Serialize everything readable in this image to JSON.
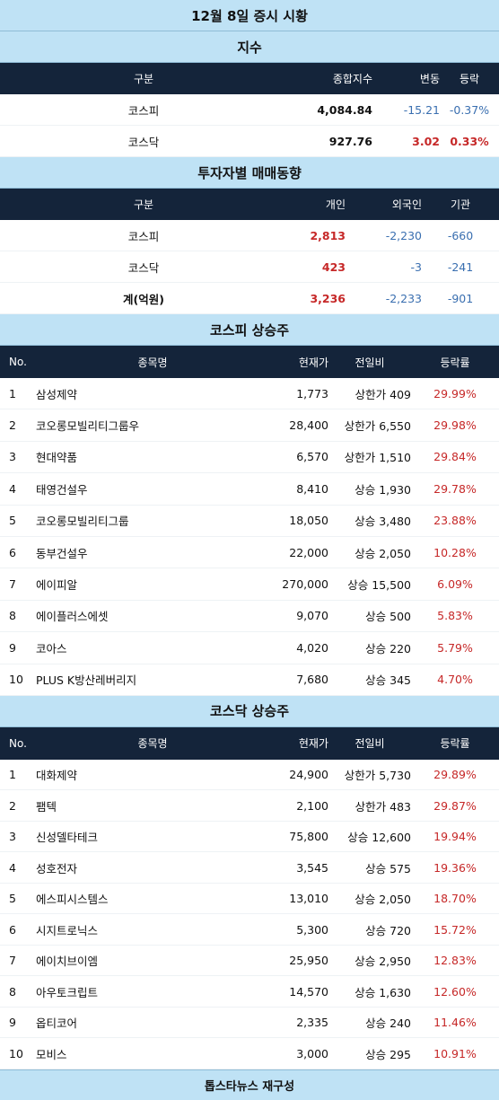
{
  "title": "12월 8일 증시 시황",
  "index_section": {
    "heading": "지수",
    "headers": [
      "구분",
      "종합지수",
      "변동",
      "등락"
    ],
    "rows": [
      {
        "name": "코스피",
        "value": "4,084.84",
        "change": "-15.21",
        "pct": "-0.37%",
        "dir": "down"
      },
      {
        "name": "코스닥",
        "value": "927.76",
        "change": "3.02",
        "pct": "0.33%",
        "dir": "up"
      }
    ]
  },
  "investor_section": {
    "heading": "투자자별 매매동향",
    "headers": [
      "구분",
      "개인",
      "외국인",
      "기관"
    ],
    "rows": [
      {
        "name": "코스피",
        "individual": "2,813",
        "foreign": "-2,230",
        "institution": "-660"
      },
      {
        "name": "코스닥",
        "individual": "423",
        "foreign": "-3",
        "institution": "-241"
      },
      {
        "name": "계(억원)",
        "individual": "3,236",
        "foreign": "-2,233",
        "institution": "-901"
      }
    ]
  },
  "kospi_gainers": {
    "heading": "코스피 상승주",
    "headers": [
      "No.",
      "종목명",
      "현재가",
      "전일비",
      "등락률"
    ],
    "rows": [
      {
        "no": "1",
        "name": "삼성제약",
        "price": "1,773",
        "diff": "상한가 409",
        "pct": "29.99%"
      },
      {
        "no": "2",
        "name": "코오롱모빌리티그룹우",
        "price": "28,400",
        "diff": "상한가 6,550",
        "pct": "29.98%"
      },
      {
        "no": "3",
        "name": "현대약품",
        "price": "6,570",
        "diff": "상한가 1,510",
        "pct": "29.84%"
      },
      {
        "no": "4",
        "name": "태영건설우",
        "price": "8,410",
        "diff": "상승 1,930",
        "pct": "29.78%"
      },
      {
        "no": "5",
        "name": "코오롱모빌리티그룹",
        "price": "18,050",
        "diff": "상승 3,480",
        "pct": "23.88%"
      },
      {
        "no": "6",
        "name": "동부건설우",
        "price": "22,000",
        "diff": "상승 2,050",
        "pct": "10.28%"
      },
      {
        "no": "7",
        "name": "에이피알",
        "price": "270,000",
        "diff": "상승 15,500",
        "pct": "6.09%"
      },
      {
        "no": "8",
        "name": "에이플러스에셋",
        "price": "9,070",
        "diff": "상승 500",
        "pct": "5.83%"
      },
      {
        "no": "9",
        "name": "코아스",
        "price": "4,020",
        "diff": "상승 220",
        "pct": "5.79%"
      },
      {
        "no": "10",
        "name": "PLUS K방산레버리지",
        "price": "7,680",
        "diff": "상승 345",
        "pct": "4.70%"
      }
    ]
  },
  "kosdaq_gainers": {
    "heading": "코스닥 상승주",
    "headers": [
      "No.",
      "종목명",
      "현재가",
      "전일비",
      "등락률"
    ],
    "rows": [
      {
        "no": "1",
        "name": "대화제약",
        "price": "24,900",
        "diff": "상한가 5,730",
        "pct": "29.89%"
      },
      {
        "no": "2",
        "name": "팸텍",
        "price": "2,100",
        "diff": "상한가 483",
        "pct": "29.87%"
      },
      {
        "no": "3",
        "name": "신성델타테크",
        "price": "75,800",
        "diff": "상승 12,600",
        "pct": "19.94%"
      },
      {
        "no": "4",
        "name": "성호전자",
        "price": "3,545",
        "diff": "상승 575",
        "pct": "19.36%"
      },
      {
        "no": "5",
        "name": "에스피시스템스",
        "price": "13,010",
        "diff": "상승 2,050",
        "pct": "18.70%"
      },
      {
        "no": "6",
        "name": "시지트로닉스",
        "price": "5,300",
        "diff": "상승 720",
        "pct": "15.72%"
      },
      {
        "no": "7",
        "name": "에이치브이엠",
        "price": "25,950",
        "diff": "상승 2,950",
        "pct": "12.83%"
      },
      {
        "no": "8",
        "name": "아우토크립트",
        "price": "14,570",
        "diff": "상승 1,630",
        "pct": "12.60%"
      },
      {
        "no": "9",
        "name": "옵티코어",
        "price": "2,335",
        "diff": "상승 240",
        "pct": "11.46%"
      },
      {
        "no": "10",
        "name": "모비스",
        "price": "3,000",
        "diff": "상승 295",
        "pct": "10.91%"
      }
    ]
  },
  "footer": "톱스타뉴스 재구성",
  "colors": {
    "band": "#bfe2f5",
    "header": "#14243a",
    "up": "#c62828",
    "down": "#3a6fb0"
  }
}
